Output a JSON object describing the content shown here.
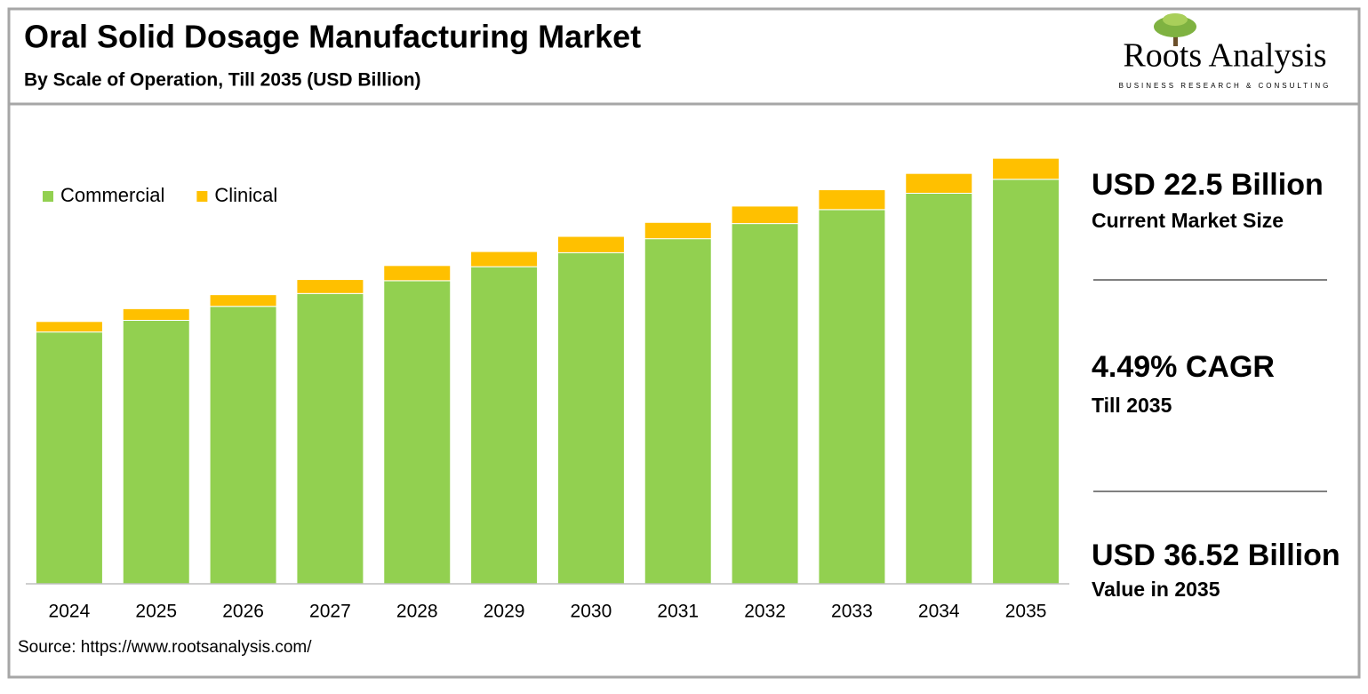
{
  "chart_data": {
    "type": "stacked_bar",
    "title": "Oral Solid Dosage Manufacturing Market",
    "subtitle": "By Scale of Operation, Till 2035 (USD Billion)",
    "categories": [
      "2024",
      "2025",
      "2026",
      "2027",
      "2028",
      "2029",
      "2030",
      "2031",
      "2032",
      "2033",
      "2034",
      "2035"
    ],
    "series": [
      {
        "name": "Commercial",
        "color": "#92d050",
        "values": [
          21.6,
          22.6,
          23.8,
          24.9,
          26.0,
          27.2,
          28.4,
          29.6,
          30.9,
          32.1,
          33.5,
          34.7
        ]
      },
      {
        "name": "Clinical",
        "color": "#ffc000",
        "values": [
          0.9,
          1.0,
          1.0,
          1.2,
          1.3,
          1.3,
          1.4,
          1.4,
          1.5,
          1.7,
          1.7,
          1.8
        ]
      }
    ],
    "ylim": [
      0,
      37.5
    ],
    "legend": "upper left",
    "source": "Source: https://www.rootsanalysis.com/"
  },
  "highlights": [
    {
      "value": "USD 22.5 Billion",
      "label": "Current Market Size"
    },
    {
      "value": "4.49% CAGR",
      "label": "Till 2035"
    },
    {
      "value": "USD 36.52 Billion",
      "label": "Value in 2035"
    }
  ],
  "logo": {
    "name": "Roots Analysis",
    "tagline": "BUSINESS RESEARCH & CONSULTING"
  }
}
